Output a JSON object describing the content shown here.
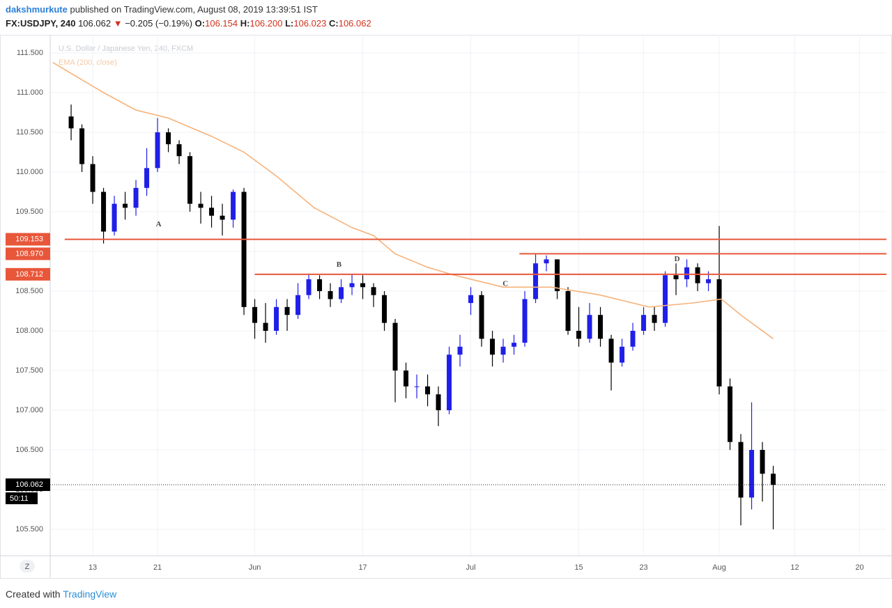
{
  "header": {
    "user": "dakshmurkute",
    "published": "published on TradingView.com, August 08, 2019 13:39:51 IST",
    "symbol": "FX:USDJPY, 240",
    "price": "106.062",
    "arrow": "▼",
    "change": "−0.205 (−0.19%)",
    "o_label": "O:",
    "o": "106.154",
    "h_label": "H:",
    "h": "106.200",
    "l_label": "L:",
    "l": "106.023",
    "c_label": "C:",
    "c": "106.062"
  },
  "footer": {
    "created": "Created with",
    "brand": "TradingView",
    "z_button": "Z"
  },
  "chart_data": {
    "type": "candlestick",
    "title": "U.S. Dollar / Japanese Yen, 240, FXCM",
    "subtitle": "EMA (200, close)",
    "up_color": "#1f1fe8",
    "down_color": "#000000",
    "ema_color": "#f7b27a",
    "level_color": "#e8573a",
    "grid": true,
    "xlim": [
      -1.94,
      75.48
    ],
    "xticks": [
      {
        "value": 2,
        "label": "13"
      },
      {
        "value": 8,
        "label": "21"
      },
      {
        "value": 17,
        "label": "Jun"
      },
      {
        "value": 27,
        "label": "17"
      },
      {
        "value": 37,
        "label": "Jul"
      },
      {
        "value": 47,
        "label": "15"
      },
      {
        "value": 53,
        "label": "23"
      },
      {
        "value": 60,
        "label": "Aug"
      },
      {
        "value": 67,
        "label": "12"
      },
      {
        "value": 73,
        "label": "20"
      }
    ],
    "ylim": [
      105.167,
      111.728
    ],
    "yticks": [
      {
        "value": 105.5,
        "label": "105.500"
      },
      {
        "value": 106,
        "label": "106.000"
      },
      {
        "value": 106.5,
        "label": "106.500"
      },
      {
        "value": 107,
        "label": "107.000"
      },
      {
        "value": 107.5,
        "label": "107.500"
      },
      {
        "value": 108,
        "label": "108.000"
      },
      {
        "value": 108.5,
        "label": "108.500"
      },
      {
        "value": 109,
        "label": "109.000"
      },
      {
        "value": 109.5,
        "label": "109.500"
      },
      {
        "value": 110,
        "label": "110.000"
      },
      {
        "value": 110.5,
        "label": "110.500"
      },
      {
        "value": 111,
        "label": "111.000"
      },
      {
        "value": 111.5,
        "label": "111.500"
      }
    ],
    "open": [
      110.7,
      110.55,
      110.1,
      109.75,
      109.25,
      109.6,
      109.55,
      109.8,
      110.05,
      110.5,
      110.35,
      110.2,
      109.6,
      109.55,
      109.45,
      109.4,
      109.75,
      108.3,
      108.1,
      108.0,
      108.3,
      108.2,
      108.45,
      108.65,
      108.5,
      108.4,
      108.55,
      108.6,
      108.55,
      108.45,
      108.1,
      107.5,
      107.3,
      107.3,
      107.2,
      107.0,
      107.7,
      108.35,
      108.45,
      107.9,
      107.7,
      107.8,
      107.85,
      108.4,
      108.85,
      108.9,
      108.5,
      108.0,
      107.9,
      108.2,
      107.9,
      107.6,
      107.8,
      108.0,
      108.2,
      108.1,
      108.7,
      108.65,
      108.8,
      108.6,
      108.65,
      107.3,
      106.6,
      105.9,
      106.5,
      106.2
    ],
    "high": [
      110.85,
      110.6,
      110.2,
      109.8,
      109.7,
      109.75,
      109.9,
      110.3,
      110.68,
      110.55,
      110.4,
      110.25,
      109.75,
      109.7,
      109.6,
      109.78,
      109.8,
      108.4,
      108.35,
      108.4,
      108.4,
      108.6,
      108.72,
      108.7,
      108.6,
      108.65,
      108.72,
      108.7,
      108.6,
      108.5,
      108.15,
      107.6,
      107.45,
      107.45,
      107.3,
      107.8,
      107.95,
      108.55,
      108.5,
      108.0,
      107.9,
      107.95,
      108.5,
      108.97,
      108.95,
      108.9,
      108.55,
      108.3,
      108.35,
      108.3,
      107.95,
      107.9,
      108.1,
      108.3,
      108.3,
      108.75,
      108.85,
      108.9,
      108.85,
      108.75,
      109.32,
      107.4,
      106.7,
      107.1,
      106.6,
      106.3
    ],
    "low": [
      110.4,
      110.0,
      109.6,
      109.1,
      109.2,
      109.4,
      109.45,
      109.7,
      110.0,
      110.25,
      110.1,
      109.5,
      109.35,
      109.3,
      109.2,
      109.3,
      108.2,
      107.9,
      107.85,
      107.95,
      108.0,
      108.15,
      108.4,
      108.4,
      108.3,
      108.35,
      108.45,
      108.4,
      108.3,
      108.0,
      107.1,
      107.15,
      107.15,
      107.05,
      106.8,
      106.95,
      107.55,
      108.2,
      107.8,
      107.55,
      107.6,
      107.7,
      107.8,
      108.35,
      108.75,
      108.4,
      107.95,
      107.8,
      107.85,
      107.8,
      107.25,
      107.55,
      107.75,
      107.95,
      108.0,
      108.05,
      108.45,
      108.55,
      108.5,
      108.5,
      107.2,
      106.5,
      105.55,
      105.75,
      105.85,
      105.5
    ],
    "close": [
      110.55,
      110.1,
      109.75,
      109.25,
      109.6,
      109.55,
      109.8,
      110.05,
      110.5,
      110.35,
      110.2,
      109.6,
      109.55,
      109.45,
      109.4,
      109.75,
      108.3,
      108.1,
      108.0,
      108.3,
      108.2,
      108.45,
      108.65,
      108.5,
      108.4,
      108.55,
      108.6,
      108.55,
      108.45,
      108.1,
      107.5,
      107.3,
      107.3,
      107.2,
      107.0,
      107.7,
      107.8,
      108.45,
      107.9,
      107.7,
      107.8,
      107.85,
      108.4,
      108.85,
      108.9,
      108.5,
      108.0,
      107.9,
      108.2,
      107.9,
      107.6,
      107.8,
      108.0,
      108.2,
      108.1,
      108.7,
      108.65,
      108.8,
      108.6,
      108.65,
      107.3,
      106.6,
      105.9,
      106.5,
      106.2,
      106.06
    ],
    "ema_x": [
      -1.7,
      3,
      6,
      9,
      13,
      16,
      19,
      22.5,
      26,
      28,
      30,
      33,
      35.5,
      40,
      44.5,
      49,
      53.5,
      57.5,
      60.2,
      62,
      65
    ],
    "ema": [
      111.38,
      111.0,
      110.78,
      110.68,
      110.45,
      110.25,
      109.95,
      109.55,
      109.3,
      109.2,
      108.97,
      108.8,
      108.7,
      108.55,
      108.55,
      108.45,
      108.3,
      108.35,
      108.4,
      108.2,
      107.9
    ],
    "levels": [
      {
        "value": 109.153,
        "label": "109.153",
        "start": -0.6
      },
      {
        "value": 108.97,
        "label": "108.970",
        "start": 41.5
      },
      {
        "value": 108.712,
        "label": "108.712",
        "start": 17
      }
    ],
    "last_price": 106.062,
    "countdown": "50:11",
    "annotations": [
      {
        "text": "A",
        "x": 8.1,
        "y": 109.34
      },
      {
        "text": "B",
        "x": 24.8,
        "y": 108.83
      },
      {
        "text": "C",
        "x": 40.2,
        "y": 108.59
      },
      {
        "text": "D",
        "x": 56.1,
        "y": 108.9
      }
    ]
  }
}
